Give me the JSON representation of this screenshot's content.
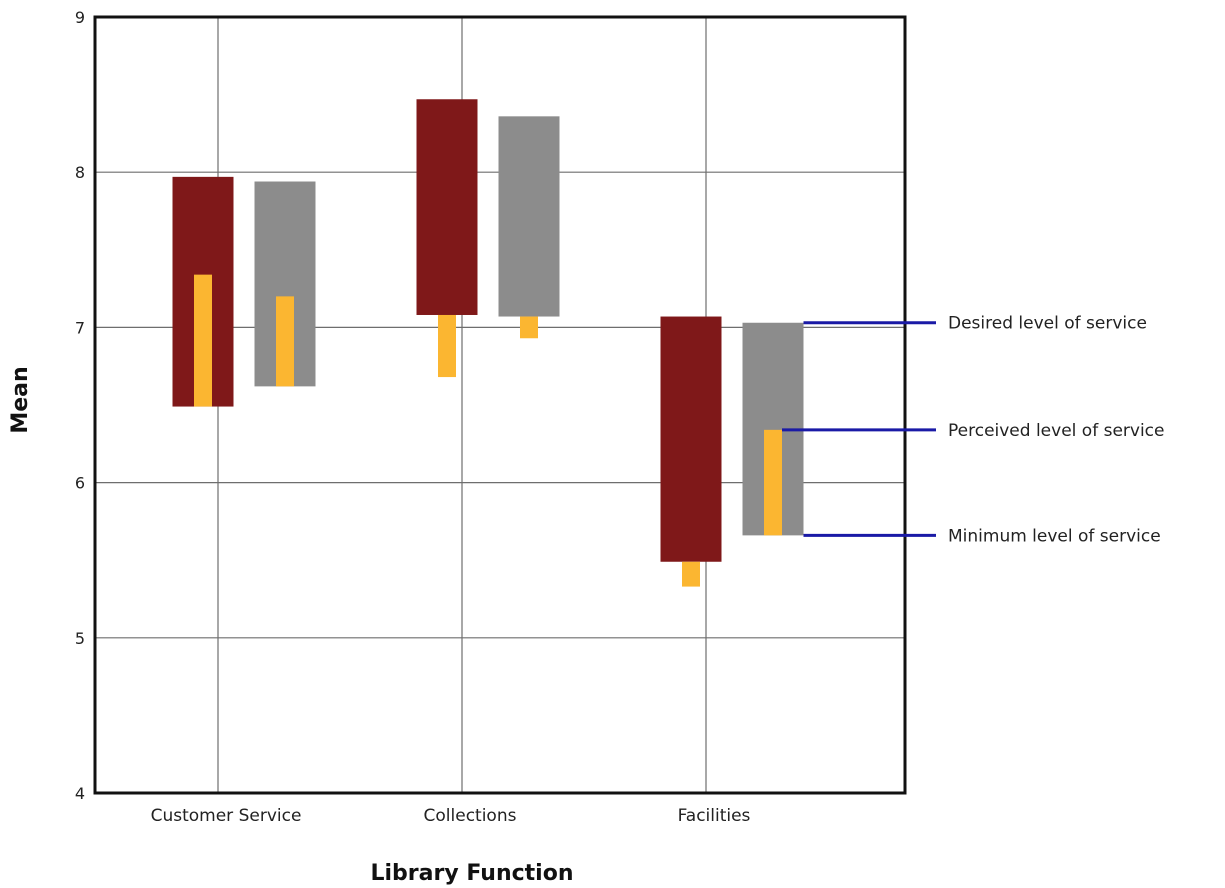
{
  "chart_data": {
    "type": "bar",
    "title": "",
    "xlabel": "Library Function",
    "ylabel": "Mean",
    "ylim": [
      4,
      9
    ],
    "yticks": [
      4,
      5,
      6,
      7,
      8,
      9
    ],
    "grid": true,
    "categories": [
      "Customer Service",
      "Collections",
      "Facilities"
    ],
    "series": [
      {
        "color": "#7f1819",
        "bars": [
          {
            "minimum": 6.49,
            "desired": 7.97,
            "perceived": 7.34
          },
          {
            "minimum": 7.08,
            "desired": 8.47,
            "perceived": 6.68
          },
          {
            "minimum": 5.49,
            "desired": 7.07,
            "perceived": 5.33
          }
        ]
      },
      {
        "color": "#8c8c8c",
        "bars": [
          {
            "minimum": 6.62,
            "desired": 7.94,
            "perceived": 7.2
          },
          {
            "minimum": 7.07,
            "desired": 8.36,
            "perceived": 6.93
          },
          {
            "minimum": 5.66,
            "desired": 7.03,
            "perceived": 6.34
          }
        ]
      }
    ],
    "perceived_color": "#fbb631",
    "legend": {
      "placement": "right",
      "line_color": "#1a1aa6",
      "items": [
        {
          "label": "Desired level of service",
          "key": "desired"
        },
        {
          "label": "Perceived level of service",
          "key": "perceived"
        },
        {
          "label": "Minimum level of service",
          "key": "minimum"
        }
      ]
    }
  }
}
